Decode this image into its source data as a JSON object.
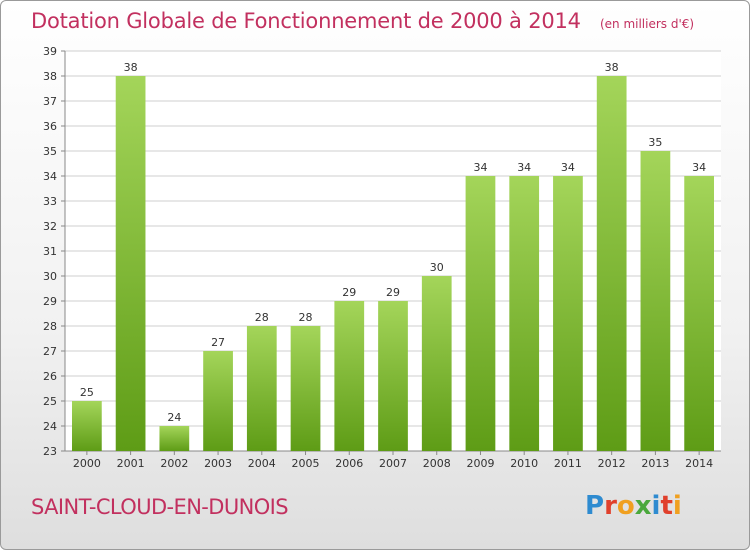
{
  "title": "Dotation Globale de Fonctionnement de 2000 à 2014",
  "unit_note": "(en milliers d'€)",
  "city": "SAINT-CLOUD-EN-DUNOIS",
  "logo": {
    "text": "Proxiti",
    "letters": [
      {
        "ch": "P",
        "color": "#2e8bd0"
      },
      {
        "ch": "r",
        "color": "#e0402c"
      },
      {
        "ch": "o",
        "color": "#f0a020"
      },
      {
        "ch": "x",
        "color": "#4aa83c"
      },
      {
        "ch": "i",
        "color": "#2e8bd0"
      },
      {
        "ch": "t",
        "color": "#e0402c"
      },
      {
        "ch": "i",
        "color": "#f0a020"
      }
    ]
  },
  "colors": {
    "accent": "#c2305f",
    "bar_light": "#a4d55a",
    "bar_dark": "#5e9c16"
  },
  "chart_data": {
    "type": "bar",
    "categories": [
      "2000",
      "2001",
      "2002",
      "2003",
      "2004",
      "2005",
      "2006",
      "2007",
      "2008",
      "2009",
      "2010",
      "2011",
      "2012",
      "2013",
      "2014"
    ],
    "values": [
      25,
      38,
      24,
      27,
      28,
      28,
      29,
      29,
      30,
      34,
      34,
      34,
      38,
      35,
      34
    ],
    "ylim": [
      23,
      39
    ],
    "yticks": [
      23,
      24,
      25,
      26,
      27,
      28,
      29,
      30,
      31,
      32,
      33,
      34,
      35,
      36,
      37,
      38,
      39
    ],
    "grid": true,
    "data_labels": true
  }
}
